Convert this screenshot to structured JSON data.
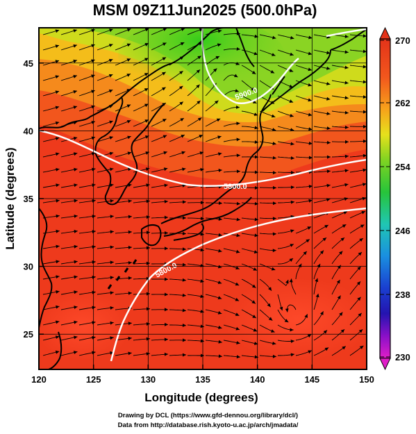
{
  "title": "MSM 09Z11Jun2025 (500.0hPa)",
  "map": {
    "xlabel": "Longitude (degrees)",
    "ylabel": "Latitude  (degrees)",
    "lon_ticks": [
      "120",
      "125",
      "130",
      "135",
      "140",
      "145",
      "150"
    ],
    "lat_ticks": [
      "25",
      "30",
      "35",
      "40",
      "45"
    ],
    "lon_range": [
      120,
      150
    ],
    "lat_range": [
      22.4,
      47.6
    ],
    "contour_labels": [
      "5800.0",
      "5800.0",
      "5900.0"
    ],
    "field": "temperature (K) shaded, geopotential height contours, wind streamlines"
  },
  "colorbar": {
    "tick_labels": [
      "270",
      "262",
      "254",
      "246",
      "238",
      "230"
    ],
    "range": [
      230,
      270
    ]
  },
  "footer": {
    "line1": "Drawing by DCL (https://www.gfd-dennou.org/library/dcl/)",
    "line2": "Data from http://database.rish.kyoto-u.ac.jp/arch/jmadata/"
  },
  "colors": {
    "warm": "#ee3a1c",
    "mid": "#f7c21a",
    "cool": "#4fc21f"
  }
}
